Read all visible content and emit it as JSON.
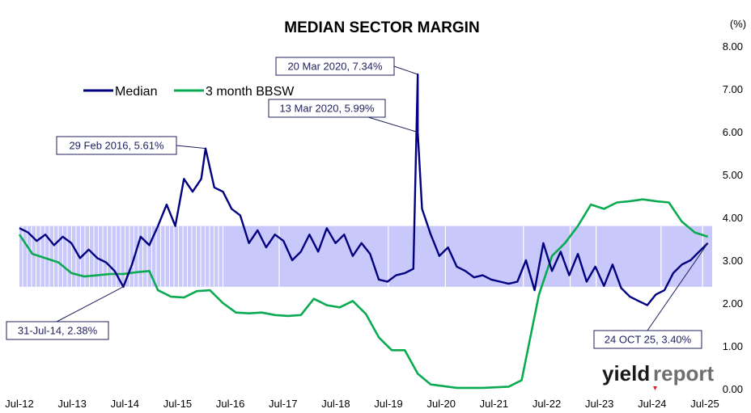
{
  "chart_data": {
    "type": "line",
    "title": "MEDIAN SECTOR MARGIN",
    "y_unit": "(%)",
    "ylim": [
      0,
      8
    ],
    "y_ticks": [
      "0.00",
      "1.00",
      "2.00",
      "3.00",
      "4.00",
      "5.00",
      "6.00",
      "7.00",
      "8.00"
    ],
    "x_ticks": [
      "Jul-12",
      "Jul-13",
      "Jul-14",
      "Jul-15",
      "Jul-16",
      "Jul-17",
      "Jul-18",
      "Jul-19",
      "Jul-20",
      "Jul-21",
      "Jul-22",
      "Jul-23",
      "Jul-24",
      "Jul-25"
    ],
    "xlim": [
      "2012-07",
      "2025-11"
    ],
    "grid": false,
    "legend_position": "top-left",
    "band": {
      "low": 2.38,
      "high": 3.8,
      "color": "#c8c8fa",
      "hatched_until": "2016-07"
    },
    "colors": {
      "median": "#000080",
      "bbsw": "#0aaa50",
      "band": "#c8c8fa"
    },
    "series": [
      {
        "name": "Median",
        "color": "#000080",
        "points": [
          [
            "2012-07",
            3.75
          ],
          [
            "2012-09",
            3.65
          ],
          [
            "2012-11",
            3.45
          ],
          [
            "2013-01",
            3.6
          ],
          [
            "2013-03",
            3.35
          ],
          [
            "2013-05",
            3.55
          ],
          [
            "2013-07",
            3.4
          ],
          [
            "2013-09",
            3.05
          ],
          [
            "2013-11",
            3.25
          ],
          [
            "2014-01",
            3.05
          ],
          [
            "2014-03",
            2.95
          ],
          [
            "2014-05",
            2.75
          ],
          [
            "2014-07",
            2.38
          ],
          [
            "2014-09",
            2.9
          ],
          [
            "2014-11",
            3.55
          ],
          [
            "2015-01",
            3.35
          ],
          [
            "2015-03",
            3.8
          ],
          [
            "2015-05",
            4.3
          ],
          [
            "2015-07",
            3.8
          ],
          [
            "2015-09",
            4.9
          ],
          [
            "2015-11",
            4.6
          ],
          [
            "2016-01",
            4.9
          ],
          [
            "2016-02",
            5.61
          ],
          [
            "2016-04",
            4.7
          ],
          [
            "2016-06",
            4.6
          ],
          [
            "2016-08",
            4.2
          ],
          [
            "2016-10",
            4.05
          ],
          [
            "2016-12",
            3.4
          ],
          [
            "2017-02",
            3.7
          ],
          [
            "2017-04",
            3.3
          ],
          [
            "2017-06",
            3.6
          ],
          [
            "2017-08",
            3.45
          ],
          [
            "2017-10",
            3.0
          ],
          [
            "2017-12",
            3.2
          ],
          [
            "2018-02",
            3.6
          ],
          [
            "2018-04",
            3.2
          ],
          [
            "2018-06",
            3.75
          ],
          [
            "2018-08",
            3.4
          ],
          [
            "2018-10",
            3.6
          ],
          [
            "2018-12",
            3.1
          ],
          [
            "2019-02",
            3.4
          ],
          [
            "2019-04",
            3.15
          ],
          [
            "2019-06",
            2.55
          ],
          [
            "2019-08",
            2.5
          ],
          [
            "2019-10",
            2.65
          ],
          [
            "2019-12",
            2.7
          ],
          [
            "2020-02",
            2.8
          ],
          [
            "2020-03",
            7.34
          ],
          [
            "2020-03",
            5.99
          ],
          [
            "2020-04",
            4.2
          ],
          [
            "2020-06",
            3.6
          ],
          [
            "2020-08",
            3.1
          ],
          [
            "2020-10",
            3.3
          ],
          [
            "2020-12",
            2.85
          ],
          [
            "2021-02",
            2.75
          ],
          [
            "2021-04",
            2.6
          ],
          [
            "2021-06",
            2.65
          ],
          [
            "2021-08",
            2.55
          ],
          [
            "2021-10",
            2.5
          ],
          [
            "2021-12",
            2.45
          ],
          [
            "2022-02",
            2.5
          ],
          [
            "2022-04",
            3.0
          ],
          [
            "2022-06",
            2.3
          ],
          [
            "2022-08",
            3.4
          ],
          [
            "2022-10",
            2.75
          ],
          [
            "2022-12",
            3.2
          ],
          [
            "2023-02",
            2.65
          ],
          [
            "2023-04",
            3.15
          ],
          [
            "2023-06",
            2.5
          ],
          [
            "2023-08",
            2.85
          ],
          [
            "2023-10",
            2.4
          ],
          [
            "2023-12",
            2.9
          ],
          [
            "2024-02",
            2.35
          ],
          [
            "2024-04",
            2.15
          ],
          [
            "2024-06",
            2.05
          ],
          [
            "2024-08",
            1.95
          ],
          [
            "2024-10",
            2.2
          ],
          [
            "2024-12",
            2.3
          ],
          [
            "2025-02",
            2.7
          ],
          [
            "2025-04",
            2.9
          ],
          [
            "2025-06",
            3.0
          ],
          [
            "2025-08",
            3.2
          ],
          [
            "2025-10",
            3.4
          ]
        ]
      },
      {
        "name": "3 month BBSW",
        "color": "#0aaa50",
        "points": [
          [
            "2012-07",
            3.6
          ],
          [
            "2012-10",
            3.15
          ],
          [
            "2013-01",
            3.05
          ],
          [
            "2013-04",
            2.95
          ],
          [
            "2013-07",
            2.7
          ],
          [
            "2013-10",
            2.62
          ],
          [
            "2014-01",
            2.65
          ],
          [
            "2014-04",
            2.68
          ],
          [
            "2014-07",
            2.68
          ],
          [
            "2014-10",
            2.72
          ],
          [
            "2015-01",
            2.75
          ],
          [
            "2015-03",
            2.3
          ],
          [
            "2015-06",
            2.15
          ],
          [
            "2015-09",
            2.13
          ],
          [
            "2015-12",
            2.28
          ],
          [
            "2016-03",
            2.3
          ],
          [
            "2016-06",
            2.0
          ],
          [
            "2016-09",
            1.78
          ],
          [
            "2016-12",
            1.76
          ],
          [
            "2017-03",
            1.78
          ],
          [
            "2017-06",
            1.72
          ],
          [
            "2017-09",
            1.7
          ],
          [
            "2017-12",
            1.72
          ],
          [
            "2018-03",
            2.1
          ],
          [
            "2018-06",
            1.95
          ],
          [
            "2018-09",
            1.9
          ],
          [
            "2018-12",
            2.05
          ],
          [
            "2019-03",
            1.75
          ],
          [
            "2019-06",
            1.2
          ],
          [
            "2019-09",
            0.9
          ],
          [
            "2019-12",
            0.9
          ],
          [
            "2020-03",
            0.35
          ],
          [
            "2020-06",
            0.1
          ],
          [
            "2020-12",
            0.02
          ],
          [
            "2021-06",
            0.02
          ],
          [
            "2021-12",
            0.05
          ],
          [
            "2022-03",
            0.2
          ],
          [
            "2022-05",
            1.2
          ],
          [
            "2022-07",
            2.2
          ],
          [
            "2022-10",
            3.1
          ],
          [
            "2023-01",
            3.4
          ],
          [
            "2023-04",
            3.8
          ],
          [
            "2023-07",
            4.3
          ],
          [
            "2023-10",
            4.2
          ],
          [
            "2024-01",
            4.35
          ],
          [
            "2024-04",
            4.38
          ],
          [
            "2024-07",
            4.42
          ],
          [
            "2024-10",
            4.38
          ],
          [
            "2025-01",
            4.35
          ],
          [
            "2025-04",
            3.9
          ],
          [
            "2025-07",
            3.65
          ],
          [
            "2025-10",
            3.55
          ]
        ]
      }
    ],
    "annotations": [
      {
        "label": "20 Mar 2020, 7.34%",
        "x": "2020-03",
        "y": 7.34
      },
      {
        "label": "13 Mar 2020, 5.99%",
        "x": "2020-03",
        "y": 5.99
      },
      {
        "label": "29 Feb 2016, 5.61%",
        "x": "2016-02",
        "y": 5.61
      },
      {
        "label": "31-Jul-14, 2.38%",
        "x": "2014-07",
        "y": 2.38
      },
      {
        "label": "24 OCT 25, 3.40%",
        "x": "2025-10",
        "y": 3.4
      }
    ]
  },
  "logo": {
    "part1": "yield",
    "part2": "report"
  }
}
